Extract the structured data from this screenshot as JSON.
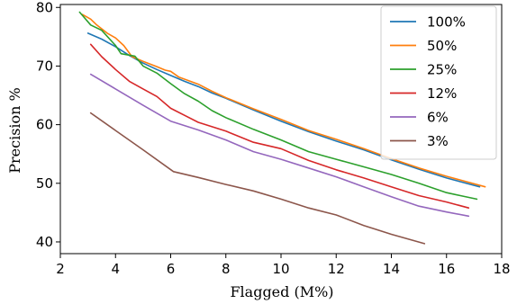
{
  "chart_data": {
    "type": "line",
    "title": "",
    "xlabel": "Flagged (M%)",
    "ylabel": "Precision %",
    "xlim": [
      2,
      18
    ],
    "ylim": [
      38,
      80.5
    ],
    "xticks": [
      2,
      4,
      6,
      8,
      10,
      12,
      14,
      16,
      18
    ],
    "yticks": [
      40,
      50,
      60,
      70,
      80
    ],
    "grid": false,
    "legend_position": "top-right",
    "series": [
      {
        "name": "100%",
        "color": "#1f77b4",
        "points": [
          [
            3.0,
            75.6
          ],
          [
            3.5,
            74.6
          ],
          [
            4.0,
            73.3
          ],
          [
            4.5,
            71.8
          ],
          [
            5.0,
            70.5
          ],
          [
            5.5,
            69.4
          ],
          [
            6.0,
            68.4
          ],
          [
            6.5,
            67.4
          ],
          [
            7.0,
            66.5
          ],
          [
            7.5,
            65.4
          ],
          [
            8.0,
            64.5
          ],
          [
            9.0,
            62.5
          ],
          [
            10.0,
            60.6
          ],
          [
            11.0,
            58.8
          ],
          [
            12.0,
            57.2
          ],
          [
            13.0,
            55.7
          ],
          [
            14.0,
            54.0
          ],
          [
            15.0,
            52.4
          ],
          [
            16.0,
            50.9
          ],
          [
            17.2,
            49.4
          ]
        ]
      },
      {
        "name": "50%",
        "color": "#ff7f0e",
        "points": [
          [
            2.8,
            78.8
          ],
          [
            3.1,
            78.0
          ],
          [
            3.3,
            77.1
          ],
          [
            3.7,
            75.6
          ],
          [
            4.0,
            74.8
          ],
          [
            4.3,
            73.5
          ],
          [
            4.6,
            71.6
          ],
          [
            5.0,
            70.8
          ],
          [
            5.5,
            69.9
          ],
          [
            5.8,
            69.3
          ],
          [
            6.0,
            69.1
          ],
          [
            6.3,
            68.1
          ],
          [
            6.6,
            67.6
          ],
          [
            7.0,
            66.9
          ],
          [
            7.5,
            65.7
          ],
          [
            8.0,
            64.6
          ],
          [
            9.0,
            62.7
          ],
          [
            10.0,
            60.9
          ],
          [
            11.0,
            59.0
          ],
          [
            12.0,
            57.5
          ],
          [
            13.0,
            55.9
          ],
          [
            14.0,
            54.2
          ],
          [
            15.0,
            52.6
          ],
          [
            16.0,
            51.2
          ],
          [
            17.4,
            49.4
          ]
        ]
      },
      {
        "name": "25%",
        "color": "#2ca02c",
        "points": [
          [
            2.7,
            79.2
          ],
          [
            3.1,
            77.0
          ],
          [
            3.5,
            76.1
          ],
          [
            4.0,
            73.5
          ],
          [
            4.2,
            72.1
          ],
          [
            4.7,
            71.7
          ],
          [
            5.0,
            70.0
          ],
          [
            5.5,
            68.8
          ],
          [
            6.0,
            67.0
          ],
          [
            6.5,
            65.3
          ],
          [
            7.0,
            64.0
          ],
          [
            7.5,
            62.4
          ],
          [
            8.0,
            61.2
          ],
          [
            9.0,
            59.2
          ],
          [
            10.0,
            57.4
          ],
          [
            11.0,
            55.4
          ],
          [
            12.0,
            54.1
          ],
          [
            13.0,
            52.8
          ],
          [
            14.0,
            51.5
          ],
          [
            15.0,
            50.0
          ],
          [
            16.0,
            48.4
          ],
          [
            16.5,
            47.9
          ],
          [
            17.1,
            47.3
          ]
        ]
      },
      {
        "name": "12%",
        "color": "#d62728",
        "points": [
          [
            3.1,
            73.7
          ],
          [
            3.5,
            71.6
          ],
          [
            4.0,
            69.4
          ],
          [
            4.5,
            67.4
          ],
          [
            5.0,
            66.1
          ],
          [
            5.5,
            64.8
          ],
          [
            6.0,
            62.8
          ],
          [
            6.5,
            61.6
          ],
          [
            7.0,
            60.4
          ],
          [
            8.0,
            58.9
          ],
          [
            9.0,
            57.0
          ],
          [
            10.0,
            55.9
          ],
          [
            11.0,
            53.9
          ],
          [
            12.0,
            52.3
          ],
          [
            13.0,
            50.9
          ],
          [
            14.0,
            49.4
          ],
          [
            15.0,
            47.9
          ],
          [
            16.0,
            46.8
          ],
          [
            16.8,
            45.8
          ]
        ]
      },
      {
        "name": "6%",
        "color": "#9467bd",
        "points": [
          [
            3.1,
            68.6
          ],
          [
            4.0,
            66.1
          ],
          [
            5.0,
            63.3
          ],
          [
            6.0,
            60.6
          ],
          [
            7.0,
            59.1
          ],
          [
            8.0,
            57.4
          ],
          [
            9.0,
            55.4
          ],
          [
            10.0,
            54.1
          ],
          [
            11.0,
            52.6
          ],
          [
            12.0,
            51.1
          ],
          [
            13.0,
            49.4
          ],
          [
            14.0,
            47.7
          ],
          [
            15.0,
            46.1
          ],
          [
            16.0,
            45.1
          ],
          [
            16.8,
            44.4
          ]
        ]
      },
      {
        "name": "3%",
        "color": "#8c564b",
        "points": [
          [
            3.1,
            62.0
          ],
          [
            4.0,
            59.0
          ],
          [
            5.0,
            55.7
          ],
          [
            6.1,
            52.0
          ],
          [
            7.0,
            51.0
          ],
          [
            8.0,
            49.8
          ],
          [
            9.0,
            48.7
          ],
          [
            10.0,
            47.3
          ],
          [
            11.0,
            45.8
          ],
          [
            12.0,
            44.6
          ],
          [
            13.0,
            42.8
          ],
          [
            14.0,
            41.3
          ],
          [
            15.2,
            39.7
          ]
        ]
      }
    ]
  }
}
